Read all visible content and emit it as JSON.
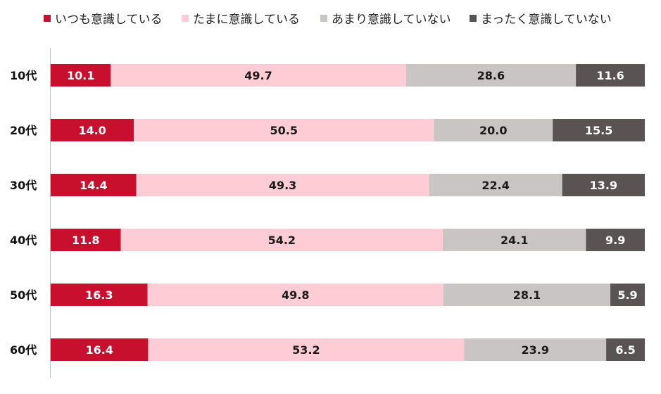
{
  "chart_data": {
    "type": "bar",
    "orientation": "horizontal",
    "stacked": true,
    "title": "",
    "xlabel": "",
    "ylabel": "",
    "xlim": [
      0,
      100
    ],
    "grid": false,
    "legend_position": "top",
    "categories": [
      "10代",
      "20代",
      "30代",
      "40代",
      "50代",
      "60代"
    ],
    "series": [
      {
        "name": "いつも意識している",
        "color": "#c8102e",
        "label_color": "#ffffff",
        "values": [
          10.1,
          14.0,
          14.4,
          11.8,
          16.3,
          16.4
        ]
      },
      {
        "name": "たまに意識している",
        "color": "#fdccd5",
        "label_color": "#1a1a1a",
        "values": [
          49.7,
          50.5,
          49.3,
          54.2,
          49.8,
          53.2
        ]
      },
      {
        "name": "あまり意識していない",
        "color": "#c9c5c5",
        "label_color": "#1a1a1a",
        "values": [
          28.6,
          20.0,
          22.4,
          24.1,
          28.1,
          23.9
        ]
      },
      {
        "name": "まったく意識していない",
        "color": "#595353",
        "label_color": "#ffffff",
        "values": [
          11.6,
          15.5,
          13.9,
          9.9,
          5.9,
          6.5
        ]
      }
    ]
  }
}
